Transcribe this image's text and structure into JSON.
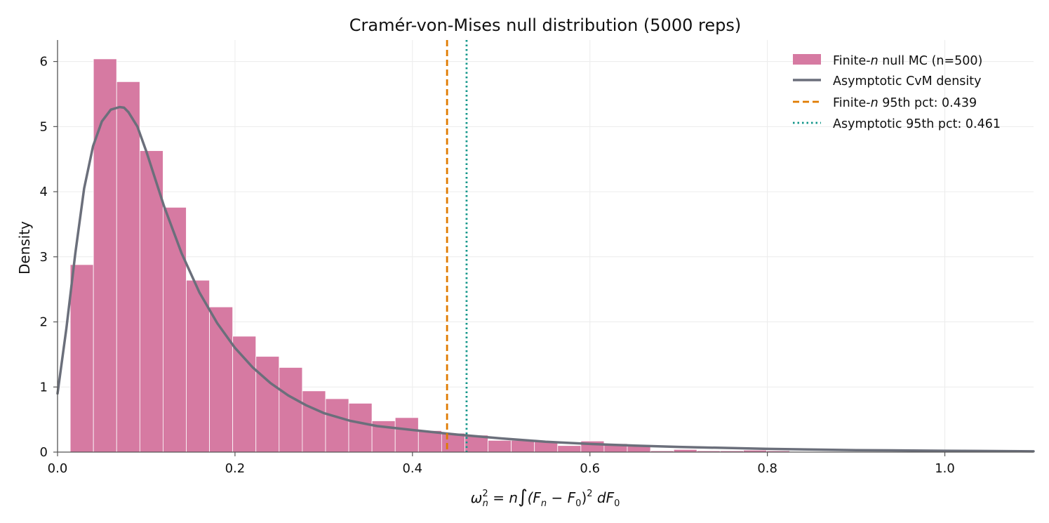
{
  "chart_data": {
    "type": "bar",
    "title": "Cramér-von-Mises null distribution (5000 reps)",
    "xlabel": "ω²ₙ = n∫(Fₙ − F₀)² dF₀",
    "xlabel_parts": {
      "omega": "ω",
      "sup": "2",
      "sub_n": "n",
      "eq": " = n",
      "integral": "∫",
      "body1": "(F",
      "sub_n2": "n",
      "minus": " − F",
      "sub_0": "0",
      "close": ")",
      "sup2": "2",
      "d": " dF",
      "sub_0b": "0"
    },
    "ylabel": "Density",
    "xlim": [
      0.0,
      1.1
    ],
    "ylim": [
      0,
      6.33
    ],
    "xticks": [
      0.0,
      0.2,
      0.4,
      0.6,
      0.8,
      1.0
    ],
    "xtick_labels": [
      "0.0",
      "0.2",
      "0.4",
      "0.6",
      "0.8",
      "1.0"
    ],
    "yticks": [
      0,
      1,
      2,
      3,
      4,
      5,
      6
    ],
    "ytick_labels": [
      "0",
      "1",
      "2",
      "3",
      "4",
      "5",
      "6"
    ],
    "grid": true,
    "legend_position": "top-right",
    "histogram": {
      "name_parts": [
        "Finite-",
        "n",
        " null MC (n=500)"
      ],
      "color": "#d67aa2",
      "bin_start": 0.0143,
      "bin_width": 0.02616,
      "densities": [
        2.88,
        6.04,
        5.69,
        4.63,
        3.76,
        2.64,
        2.23,
        1.78,
        1.47,
        1.3,
        0.94,
        0.82,
        0.75,
        0.48,
        0.53,
        0.33,
        0.29,
        0.26,
        0.18,
        0.18,
        0.16,
        0.1,
        0.17,
        0.13,
        0.1,
        0.02,
        0.04,
        0.02,
        0.02,
        0.03,
        0.02,
        0.01,
        0.01,
        0.0,
        0.01,
        0.0,
        0.0,
        0.0,
        0.0,
        0.0,
        0.0
      ]
    },
    "density_curve": {
      "name": "Asymptotic CvM density",
      "color": "#6b6f7b",
      "x": [
        0.0,
        0.01,
        0.02,
        0.03,
        0.04,
        0.05,
        0.06,
        0.07,
        0.075,
        0.08,
        0.09,
        0.1,
        0.12,
        0.14,
        0.16,
        0.18,
        0.2,
        0.22,
        0.24,
        0.26,
        0.28,
        0.3,
        0.33,
        0.36,
        0.4,
        0.45,
        0.5,
        0.55,
        0.6,
        0.65,
        0.7,
        0.8,
        0.9,
        1.0,
        1.1
      ],
      "y": [
        0.9,
        1.9,
        3.05,
        4.05,
        4.7,
        5.08,
        5.26,
        5.3,
        5.29,
        5.22,
        5.0,
        4.62,
        3.78,
        3.05,
        2.45,
        1.98,
        1.6,
        1.3,
        1.06,
        0.87,
        0.72,
        0.6,
        0.48,
        0.4,
        0.34,
        0.27,
        0.21,
        0.16,
        0.125,
        0.1,
        0.08,
        0.05,
        0.03,
        0.02,
        0.012
      ]
    },
    "vlines": [
      {
        "name_parts": [
          "Finite-",
          "n",
          " 95th pct: 0.439"
        ],
        "x": 0.439,
        "color": "#e07b00",
        "style": "dashed"
      },
      {
        "name": "Asymptotic 95th pct: 0.461",
        "x": 0.461,
        "color": "#12968a",
        "style": "dotted"
      }
    ]
  }
}
